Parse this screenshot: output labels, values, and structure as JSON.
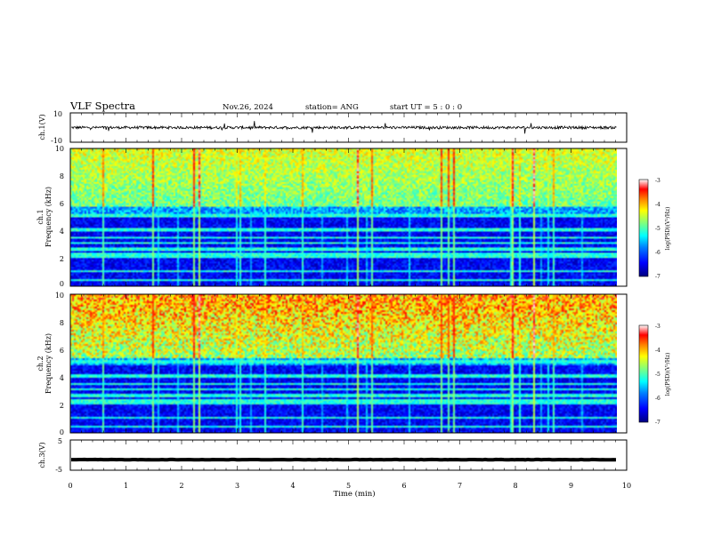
{
  "header": {
    "title": "VLF Spectra",
    "date": "Nov.26, 2024",
    "station": "station= ANG",
    "start_ut": "start  UT =   5 : 0  : 0"
  },
  "chart_data": [
    {
      "type": "line",
      "name": "ch1-waveform",
      "ylabel": "ch.1(V)",
      "ylim": [
        -10,
        10
      ],
      "yticks": [
        "10",
        "-10"
      ],
      "baseline_value": 0,
      "xlim": [
        0,
        10
      ]
    },
    {
      "type": "heatmap",
      "name": "ch1-spectrogram",
      "ylabel_line1": "ch.1",
      "ylabel_line2": "Frequency (kHz)",
      "ylim": [
        0,
        10
      ],
      "yticks": [
        "0",
        "2",
        "4",
        "6",
        "8",
        "10"
      ],
      "xlim": [
        0,
        9.83
      ],
      "colorbar": {
        "label": "log(PSD)(V²/Hz)",
        "range": [
          -7,
          -3
        ],
        "ticks": [
          "-3",
          "-4",
          "-5",
          "-6",
          "-7"
        ]
      },
      "noise_top_khz": 5.8
    },
    {
      "type": "heatmap",
      "name": "ch2-spectrogram",
      "ylabel_line1": "ch.2",
      "ylabel_line2": "Frequency (kHz)",
      "ylim": [
        0,
        10
      ],
      "yticks": [
        "0",
        "2",
        "4",
        "6",
        "8",
        "10"
      ],
      "xlim": [
        0,
        9.83
      ],
      "colorbar": {
        "label": "log(PSD)(V²/Hz)",
        "range": [
          -7,
          -3
        ],
        "ticks": [
          "-3",
          "-4",
          "-5",
          "-6",
          "-7"
        ]
      },
      "noise_top_khz": 5.5
    },
    {
      "type": "line",
      "name": "ch3-waveform",
      "ylabel": "ch.3(V)",
      "ylim": [
        -5,
        5
      ],
      "yticks": [
        "5",
        "-5"
      ],
      "baseline_value": -1.5,
      "xlim": [
        0,
        10
      ],
      "xlabel": "Time (min)",
      "xticks": [
        "0",
        "1",
        "2",
        "3",
        "4",
        "5",
        "6",
        "7",
        "8",
        "9",
        "10"
      ]
    }
  ],
  "colors": {
    "colormap": [
      "#00007f",
      "#0000ff",
      "#007fff",
      "#00ffff",
      "#7fff7f",
      "#ffff00",
      "#ff7f00",
      "#ff0000",
      "#ffffff"
    ]
  }
}
